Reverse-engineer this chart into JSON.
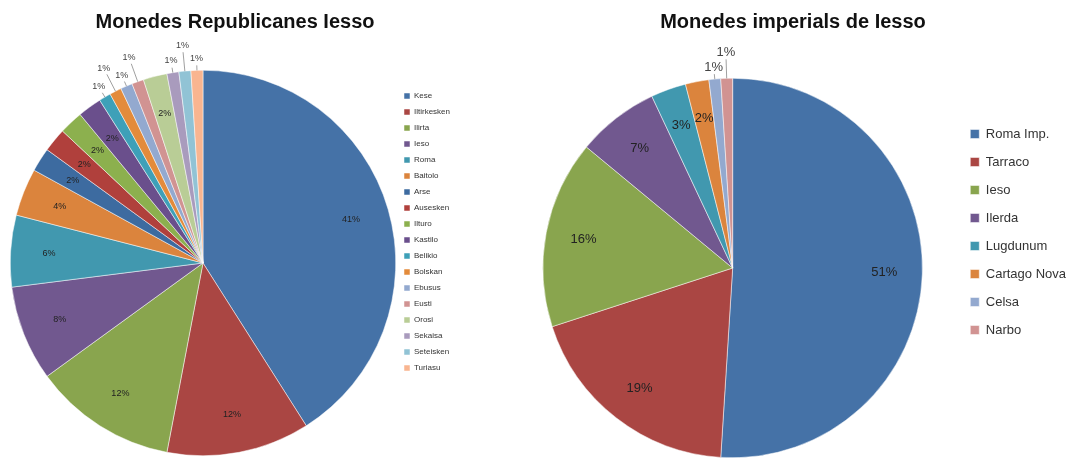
{
  "chart_data": [
    {
      "type": "pie",
      "title": "Monedes Republicanes Iesso",
      "categories": [
        "Kese",
        "Iltirkesken",
        "Ilirta",
        "Ieso",
        "Roma",
        "Baitolo",
        "Arse",
        "Ausesken",
        "Ilturo",
        "Kastilo",
        "Belikio",
        "Bolskan",
        "Ebusus",
        "Eusti",
        "Orosi",
        "Sekaisa",
        "Seteisken",
        "Turiasu"
      ],
      "values": [
        41,
        12,
        12,
        8,
        6,
        4,
        2,
        2,
        2,
        2,
        1,
        1,
        1,
        1,
        2,
        1,
        1,
        1
      ],
      "value_labels": [
        "41%",
        "12%",
        "12%",
        "8%",
        "6%",
        "4%",
        "2%",
        "2%",
        "2%",
        "2%",
        "1%",
        "1%",
        "1%",
        "1%",
        "2%",
        "1%",
        "1%",
        "1%"
      ],
      "colors": [
        "#4572a7",
        "#aa4643",
        "#89a54e",
        "#71588f",
        "#4198af",
        "#db843d",
        "#3d6ba0",
        "#b0403c",
        "#8cb04e",
        "#6a4f8c",
        "#3ea0b8",
        "#e38b3b",
        "#93a9cf",
        "#d19392",
        "#b9cd96",
        "#a99bbd",
        "#91c3d5",
        "#f9b590"
      ],
      "legend": "right"
    },
    {
      "type": "pie",
      "title": "Monedes imperials de Iesso",
      "categories": [
        "Roma Imp.",
        "Tarraco",
        "Ieso",
        "Ilerda",
        "Lugdunum",
        "Cartago Nova",
        "Celsa",
        "Narbo"
      ],
      "values": [
        51,
        19,
        16,
        7,
        3,
        2,
        1,
        1
      ],
      "value_labels": [
        "51%",
        "19%",
        "16%",
        "7%",
        "3%",
        "2%",
        "1%",
        "1%"
      ],
      "colors": [
        "#4572a7",
        "#aa4643",
        "#89a54e",
        "#71588f",
        "#4198af",
        "#db843d",
        "#93a9cf",
        "#d19392"
      ],
      "legend": "right"
    }
  ]
}
